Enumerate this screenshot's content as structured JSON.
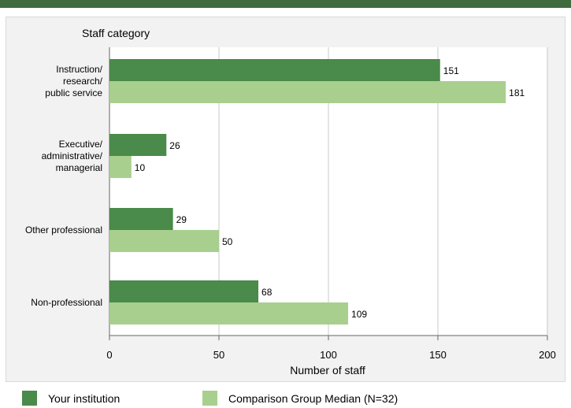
{
  "chart_data": {
    "type": "bar",
    "orientation": "horizontal",
    "ylabel": "Staff category",
    "xlabel": "Number of staff",
    "xlim": [
      0,
      200
    ],
    "xticks": [
      0,
      50,
      100,
      150,
      200
    ],
    "grid": true,
    "categories": [
      "Instruction/\nresearch/\npublic service",
      "Executive/\nadministrative/\nmanagerial",
      "Other professional",
      "Non-professional"
    ],
    "series": [
      {
        "name": "Your institution",
        "color": "#4a8a4a",
        "values": [
          151,
          26,
          29,
          68
        ]
      },
      {
        "name": "Comparison Group Median (N=32)",
        "color": "#a8cf8e",
        "values": [
          181,
          10,
          50,
          109
        ]
      }
    ],
    "legend_position": "bottom"
  }
}
